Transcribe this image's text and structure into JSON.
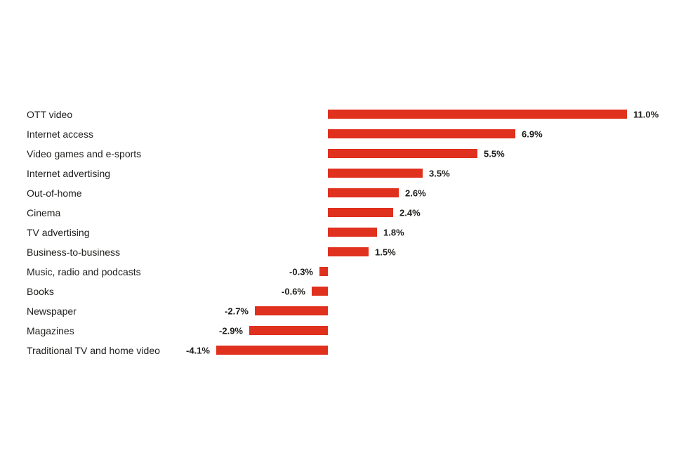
{
  "chart": {
    "bar_color": "#e0301e",
    "text_color": "#1d1d1b",
    "background_color": "#ffffff"
  },
  "chart_data": {
    "type": "bar",
    "orientation": "horizontal",
    "title": "",
    "xlabel": "",
    "ylabel": "",
    "grid": false,
    "legend": null,
    "axes_visible": false,
    "xlim": [
      -4.5,
      11.5
    ],
    "categories": [
      "OTT video",
      "Internet access",
      "Video games and e-sports",
      "Internet advertising",
      "Out-of-home",
      "Cinema",
      "TV advertising",
      "Business-to-business",
      "Music, radio and podcasts",
      "Books",
      "Newspaper",
      "Magazines",
      "Traditional TV and home video"
    ],
    "values": [
      11.0,
      6.9,
      5.5,
      3.5,
      2.6,
      2.4,
      1.8,
      1.5,
      -0.3,
      -0.6,
      -2.7,
      -2.9,
      -4.1
    ],
    "value_labels": [
      "11.0%",
      "6.9%",
      "5.5%",
      "3.5%",
      "2.6%",
      "2.4%",
      "1.8%",
      "1.5%",
      "-0.3%",
      "-0.6%",
      "-2.7%",
      "-2.9%",
      "-4.1%"
    ]
  }
}
